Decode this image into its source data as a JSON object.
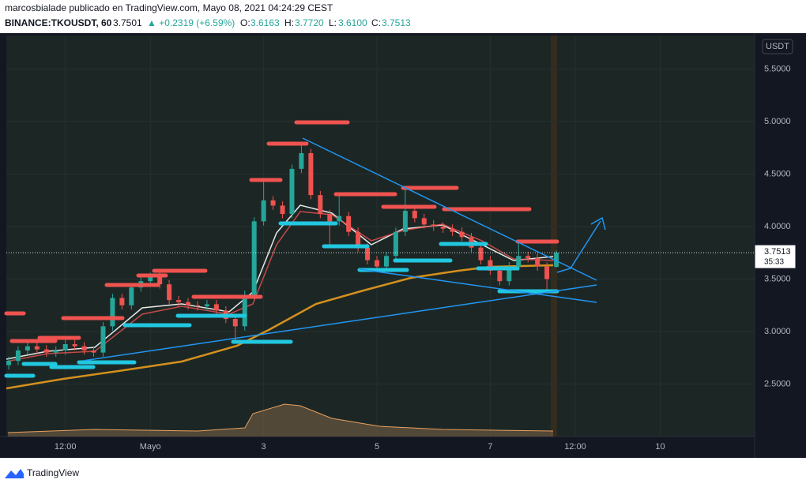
{
  "header": {
    "author_line": "marcosbialade publicado en TradingView.com, Mayo 08, 2021 04:24:29 CEST",
    "symbol": "BINANCE:TKOUSDT, 60",
    "last": "3.7501",
    "change": "▲ +0.2319 (+6.59%)",
    "o_label": "O:",
    "o": "3.6163",
    "h_label": "H:",
    "h": "3.7720",
    "l_label": "L:",
    "l": "3.6100",
    "c_label": "C:",
    "c": "3.7513"
  },
  "chart_data": {
    "type": "candlestick",
    "currency": "USDT",
    "price_label": "3.7513",
    "countdown": "35:33",
    "x": [
      -60,
      -56,
      -52,
      -48,
      -44,
      -40,
      -36,
      -32,
      -28,
      -24,
      -20,
      -16,
      -12,
      -8,
      -4,
      0,
      4,
      8,
      12,
      16,
      20,
      24,
      28,
      32,
      36,
      40,
      44,
      48,
      52,
      56,
      60,
      64,
      68,
      72,
      76,
      80,
      84,
      88,
      92,
      96,
      100,
      104,
      108,
      112,
      116,
      120,
      124,
      128,
      132,
      136,
      140,
      144,
      148,
      152,
      156,
      160,
      164,
      168,
      172
    ],
    "open": [
      2.68,
      2.72,
      2.82,
      2.86,
      2.83,
      2.8,
      2.82,
      2.88,
      2.86,
      2.82,
      2.8,
      3.05,
      3.32,
      3.25,
      3.42,
      3.48,
      3.52,
      3.45,
      3.3,
      3.28,
      3.25,
      3.24,
      3.26,
      3.2,
      3.12,
      3.05,
      3.35,
      4.05,
      4.25,
      4.2,
      4.12,
      4.55,
      4.7,
      4.3,
      4.12,
      4.05,
      4.1,
      3.95,
      3.8,
      3.68,
      3.62,
      3.72,
      3.95,
      4.15,
      4.08,
      4.02,
      4.0,
      3.98,
      3.95,
      3.9,
      3.8,
      3.68,
      3.58,
      3.48,
      3.62,
      3.72,
      3.7,
      3.62,
      3.6163
    ],
    "high": [
      2.76,
      2.86,
      2.9,
      2.9,
      2.87,
      2.86,
      2.92,
      2.92,
      2.9,
      2.86,
      3.09,
      3.36,
      3.36,
      3.46,
      3.52,
      3.56,
      3.56,
      3.49,
      3.34,
      3.32,
      3.29,
      3.3,
      3.3,
      3.24,
      3.16,
      3.39,
      4.09,
      4.45,
      4.29,
      4.24,
      4.59,
      4.8,
      4.74,
      4.34,
      4.16,
      4.3,
      4.14,
      3.99,
      3.84,
      3.72,
      3.76,
      3.99,
      4.35,
      4.19,
      4.12,
      4.06,
      4.04,
      4.02,
      3.99,
      3.94,
      3.84,
      3.72,
      3.62,
      3.66,
      3.85,
      3.76,
      3.74,
      3.66,
      3.772
    ],
    "low": [
      2.64,
      2.68,
      2.78,
      2.79,
      2.76,
      2.76,
      2.78,
      2.82,
      2.78,
      2.76,
      2.76,
      3.01,
      3.21,
      3.21,
      3.38,
      3.44,
      3.41,
      3.26,
      3.24,
      3.21,
      3.2,
      3.2,
      3.16,
      3.08,
      2.9,
      3.01,
      3.31,
      4.01,
      4.16,
      4.08,
      4.08,
      4.51,
      4.26,
      4.08,
      3.82,
      4.01,
      3.91,
      3.76,
      3.64,
      3.58,
      3.58,
      3.68,
      3.91,
      4.04,
      3.98,
      3.96,
      3.94,
      3.91,
      3.86,
      3.76,
      3.64,
      3.54,
      3.44,
      3.44,
      3.58,
      3.66,
      3.58,
      3.4,
      3.61
    ],
    "close": [
      2.72,
      2.82,
      2.86,
      2.83,
      2.8,
      2.82,
      2.88,
      2.86,
      2.82,
      2.8,
      3.05,
      3.32,
      3.25,
      3.42,
      3.48,
      3.52,
      3.45,
      3.3,
      3.28,
      3.25,
      3.24,
      3.26,
      3.2,
      3.12,
      3.05,
      3.35,
      4.05,
      4.25,
      4.2,
      4.12,
      4.55,
      4.7,
      4.3,
      4.12,
      4.05,
      4.1,
      3.95,
      3.8,
      3.68,
      3.62,
      3.72,
      3.95,
      4.15,
      4.08,
      4.02,
      4.0,
      3.98,
      3.95,
      3.9,
      3.8,
      3.68,
      3.58,
      3.48,
      3.62,
      3.72,
      3.7,
      3.62,
      3.5,
      3.7513
    ],
    "up_color": "#26a69a",
    "down_color": "#ef5350",
    "xlim": [
      -61,
      256
    ],
    "xticks": [
      {
        "value": -36,
        "label": "12:00"
      },
      {
        "value": 0,
        "label": "Mayo"
      },
      {
        "value": 48,
        "label": "3"
      },
      {
        "value": 96,
        "label": "5"
      },
      {
        "value": 144,
        "label": "7"
      },
      {
        "value": 180,
        "label": "12:00"
      },
      {
        "value": 216,
        "label": "10"
      }
    ],
    "ylim": [
      2.0,
      5.82
    ],
    "yticks": [
      {
        "value": 2.5,
        "label": "2.5000"
      },
      {
        "value": 3,
        "label": "3.0000"
      },
      {
        "value": 3.5,
        "label": "3.5000"
      },
      {
        "value": 4,
        "label": "4.0000"
      },
      {
        "value": 4.5,
        "label": "4.5000"
      },
      {
        "value": 5,
        "label": "5.0000"
      },
      {
        "value": 5.5,
        "label": "5.5000"
      }
    ],
    "grid": true
  },
  "footer": {
    "brand": "TradingView"
  }
}
